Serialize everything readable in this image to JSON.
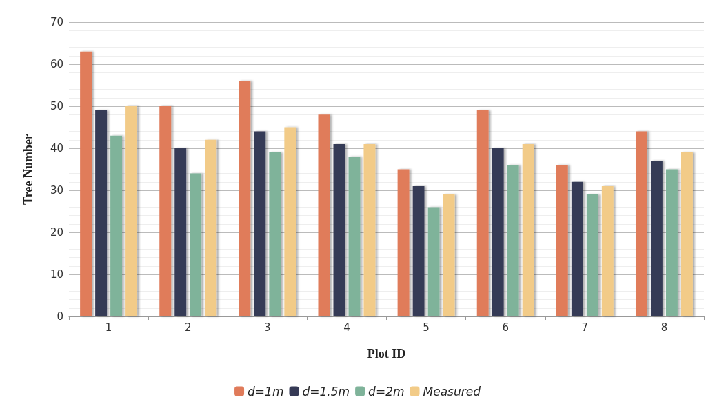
{
  "chart_data": {
    "type": "bar",
    "xlabel": "Plot ID",
    "ylabel": "Tree Number",
    "categories": [
      "1",
      "2",
      "3",
      "4",
      "5",
      "6",
      "7",
      "8"
    ],
    "series": [
      {
        "name": "d=1m",
        "color": "#e07b5a",
        "values": [
          63,
          50,
          56,
          48,
          35,
          49,
          36,
          44
        ]
      },
      {
        "name": "d=1.5m",
        "color": "#363a56",
        "values": [
          49,
          40,
          44,
          41,
          31,
          40,
          32,
          37
        ]
      },
      {
        "name": "d=2m",
        "color": "#7fb39a",
        "values": [
          43,
          34,
          39,
          38,
          26,
          36,
          29,
          35
        ]
      },
      {
        "name": "Measured",
        "color": "#f2cb88",
        "values": [
          50,
          42,
          45,
          41,
          29,
          41,
          31,
          39
        ]
      }
    ],
    "ylim": [
      0,
      70
    ],
    "yticks": [
      0,
      10,
      20,
      30,
      40,
      50,
      60,
      70
    ],
    "grid": "y",
    "legend": "bottom"
  }
}
